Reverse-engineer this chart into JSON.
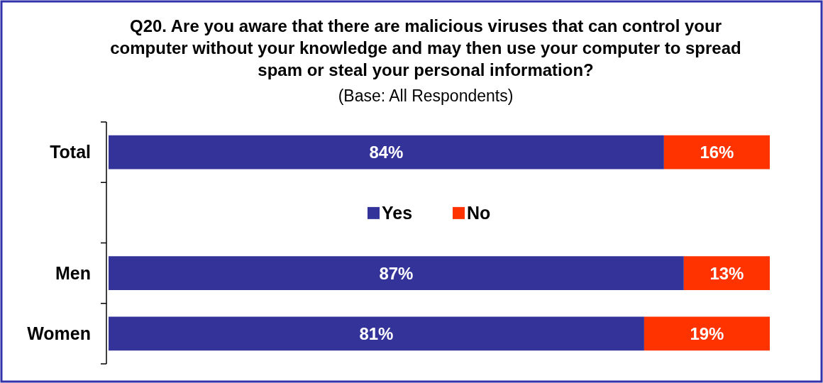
{
  "chart_data": {
    "type": "bar",
    "orientation": "horizontal",
    "stacked": true,
    "title": "Q20. Are you aware that there are malicious viruses that can control your computer without your knowledge and may then use your computer to spread spam or steal your personal information?",
    "subtitle": "(Base: All Respondents)",
    "categories": [
      "Total",
      null,
      "Men",
      "Women"
    ],
    "series": [
      {
        "name": "Yes",
        "color": "#333399",
        "values": [
          84,
          null,
          87,
          81
        ],
        "value_labels": [
          "84%",
          null,
          "87%",
          "81%"
        ]
      },
      {
        "name": "No",
        "color": "#ff3300",
        "values": [
          16,
          null,
          13,
          19
        ],
        "value_labels": [
          "16%",
          null,
          "13%",
          "19%"
        ]
      }
    ],
    "legend": "center"
  }
}
